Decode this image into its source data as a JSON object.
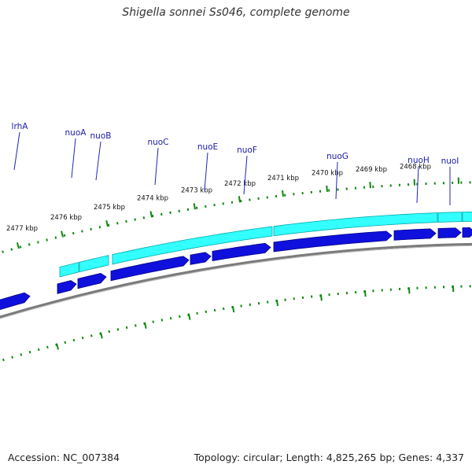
{
  "title": "Shigella sonnei Ss046, complete genome",
  "footer": {
    "accession": "Accession: NC_007384",
    "summary": "Topology: circular; Length: 4,825,265 bp; Genes: 4,337"
  },
  "colors": {
    "cds": "#1010dd",
    "cds_dark": "#000088",
    "operon": "#33ffff",
    "operon_dark": "#00aaaa",
    "backbone": "#7a7a7a",
    "tick": "#118811",
    "label_line": "#2222bb"
  },
  "kbp_labels": [
    "2477 kbp",
    "2476 kbp",
    "2475 kbp",
    "2474 kbp",
    "2473 kbp",
    "2472 kbp",
    "2471 kbp",
    "2470 kbp",
    "2469 kbp",
    "2468 kbp"
  ],
  "genes": [
    {
      "name": "lrhA",
      "label": "lrhA"
    },
    {
      "name": "nuoA",
      "label": "nuoA"
    },
    {
      "name": "nuoB",
      "label": "nuoB"
    },
    {
      "name": "nuoC",
      "label": "nuoC"
    },
    {
      "name": "nuoE",
      "label": "nuoE"
    },
    {
      "name": "nuoF",
      "label": "nuoF"
    },
    {
      "name": "nuoG",
      "label": "nuoG"
    },
    {
      "name": "nuoH",
      "label": "nuoH"
    },
    {
      "name": "nuoI",
      "label": "nuoI"
    }
  ]
}
